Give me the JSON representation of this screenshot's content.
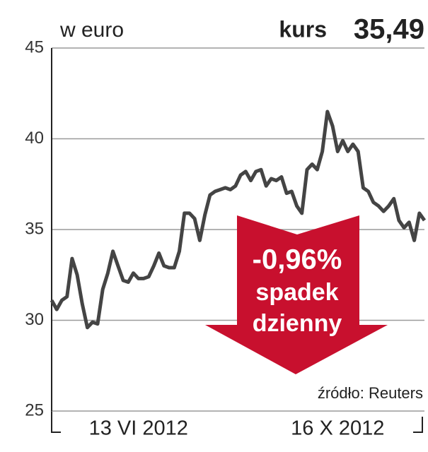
{
  "chart_data": {
    "type": "line",
    "title": "w euro",
    "price_label": "kurs",
    "price": "35,49",
    "annotation": [
      "-0,96%",
      "spadek",
      "dzienny"
    ],
    "source": "źródło: Reuters",
    "categories": [
      null,
      null,
      null,
      null,
      null,
      null,
      null,
      null,
      null,
      null,
      null,
      null,
      null,
      null,
      null,
      null,
      null,
      "13 VI 2012",
      null,
      null,
      null,
      null,
      null,
      null,
      null,
      null,
      null,
      null,
      null,
      null,
      null,
      null,
      null,
      null,
      null,
      null,
      null,
      null,
      null,
      null,
      null,
      null,
      null,
      null,
      null,
      null,
      null,
      null,
      null,
      null,
      null,
      null,
      null,
      null,
      null,
      null,
      "16 X 2012",
      null,
      null,
      null,
      null,
      null,
      null,
      null,
      null,
      null,
      null,
      null,
      null,
      null,
      null,
      null,
      null,
      null
    ],
    "series": [
      {
        "color": "#444444",
        "values": [
          31.1,
          30.6,
          31.1,
          31.3,
          33.4,
          32.5,
          30.9,
          29.6,
          29.9,
          29.8,
          31.7,
          32.6,
          33.8,
          33.0,
          32.2,
          32.1,
          32.6,
          32.3,
          32.3,
          32.4,
          33.0,
          33.7,
          33.0,
          32.9,
          32.9,
          33.8,
          35.9,
          35.9,
          35.6,
          34.4,
          35.8,
          36.9,
          37.1,
          37.2,
          37.3,
          37.2,
          37.4,
          38.0,
          38.2,
          37.7,
          38.2,
          38.3,
          37.4,
          37.8,
          37.7,
          37.9,
          37.0,
          37.1,
          36.3,
          35.9,
          38.3,
          38.6,
          38.3,
          39.3,
          41.5,
          40.7,
          39.3,
          39.9,
          39.3,
          39.7,
          39.3,
          37.3,
          37.1,
          36.5,
          36.3,
          36.0,
          36.3,
          36.7,
          35.5,
          35.1,
          35.4,
          34.4,
          35.9,
          35.5
        ]
      }
    ],
    "ylim": [
      25,
      45
    ],
    "yticks": [
      25,
      30,
      35,
      40,
      45
    ],
    "grid": true,
    "annotation_color": "#c8102e"
  }
}
